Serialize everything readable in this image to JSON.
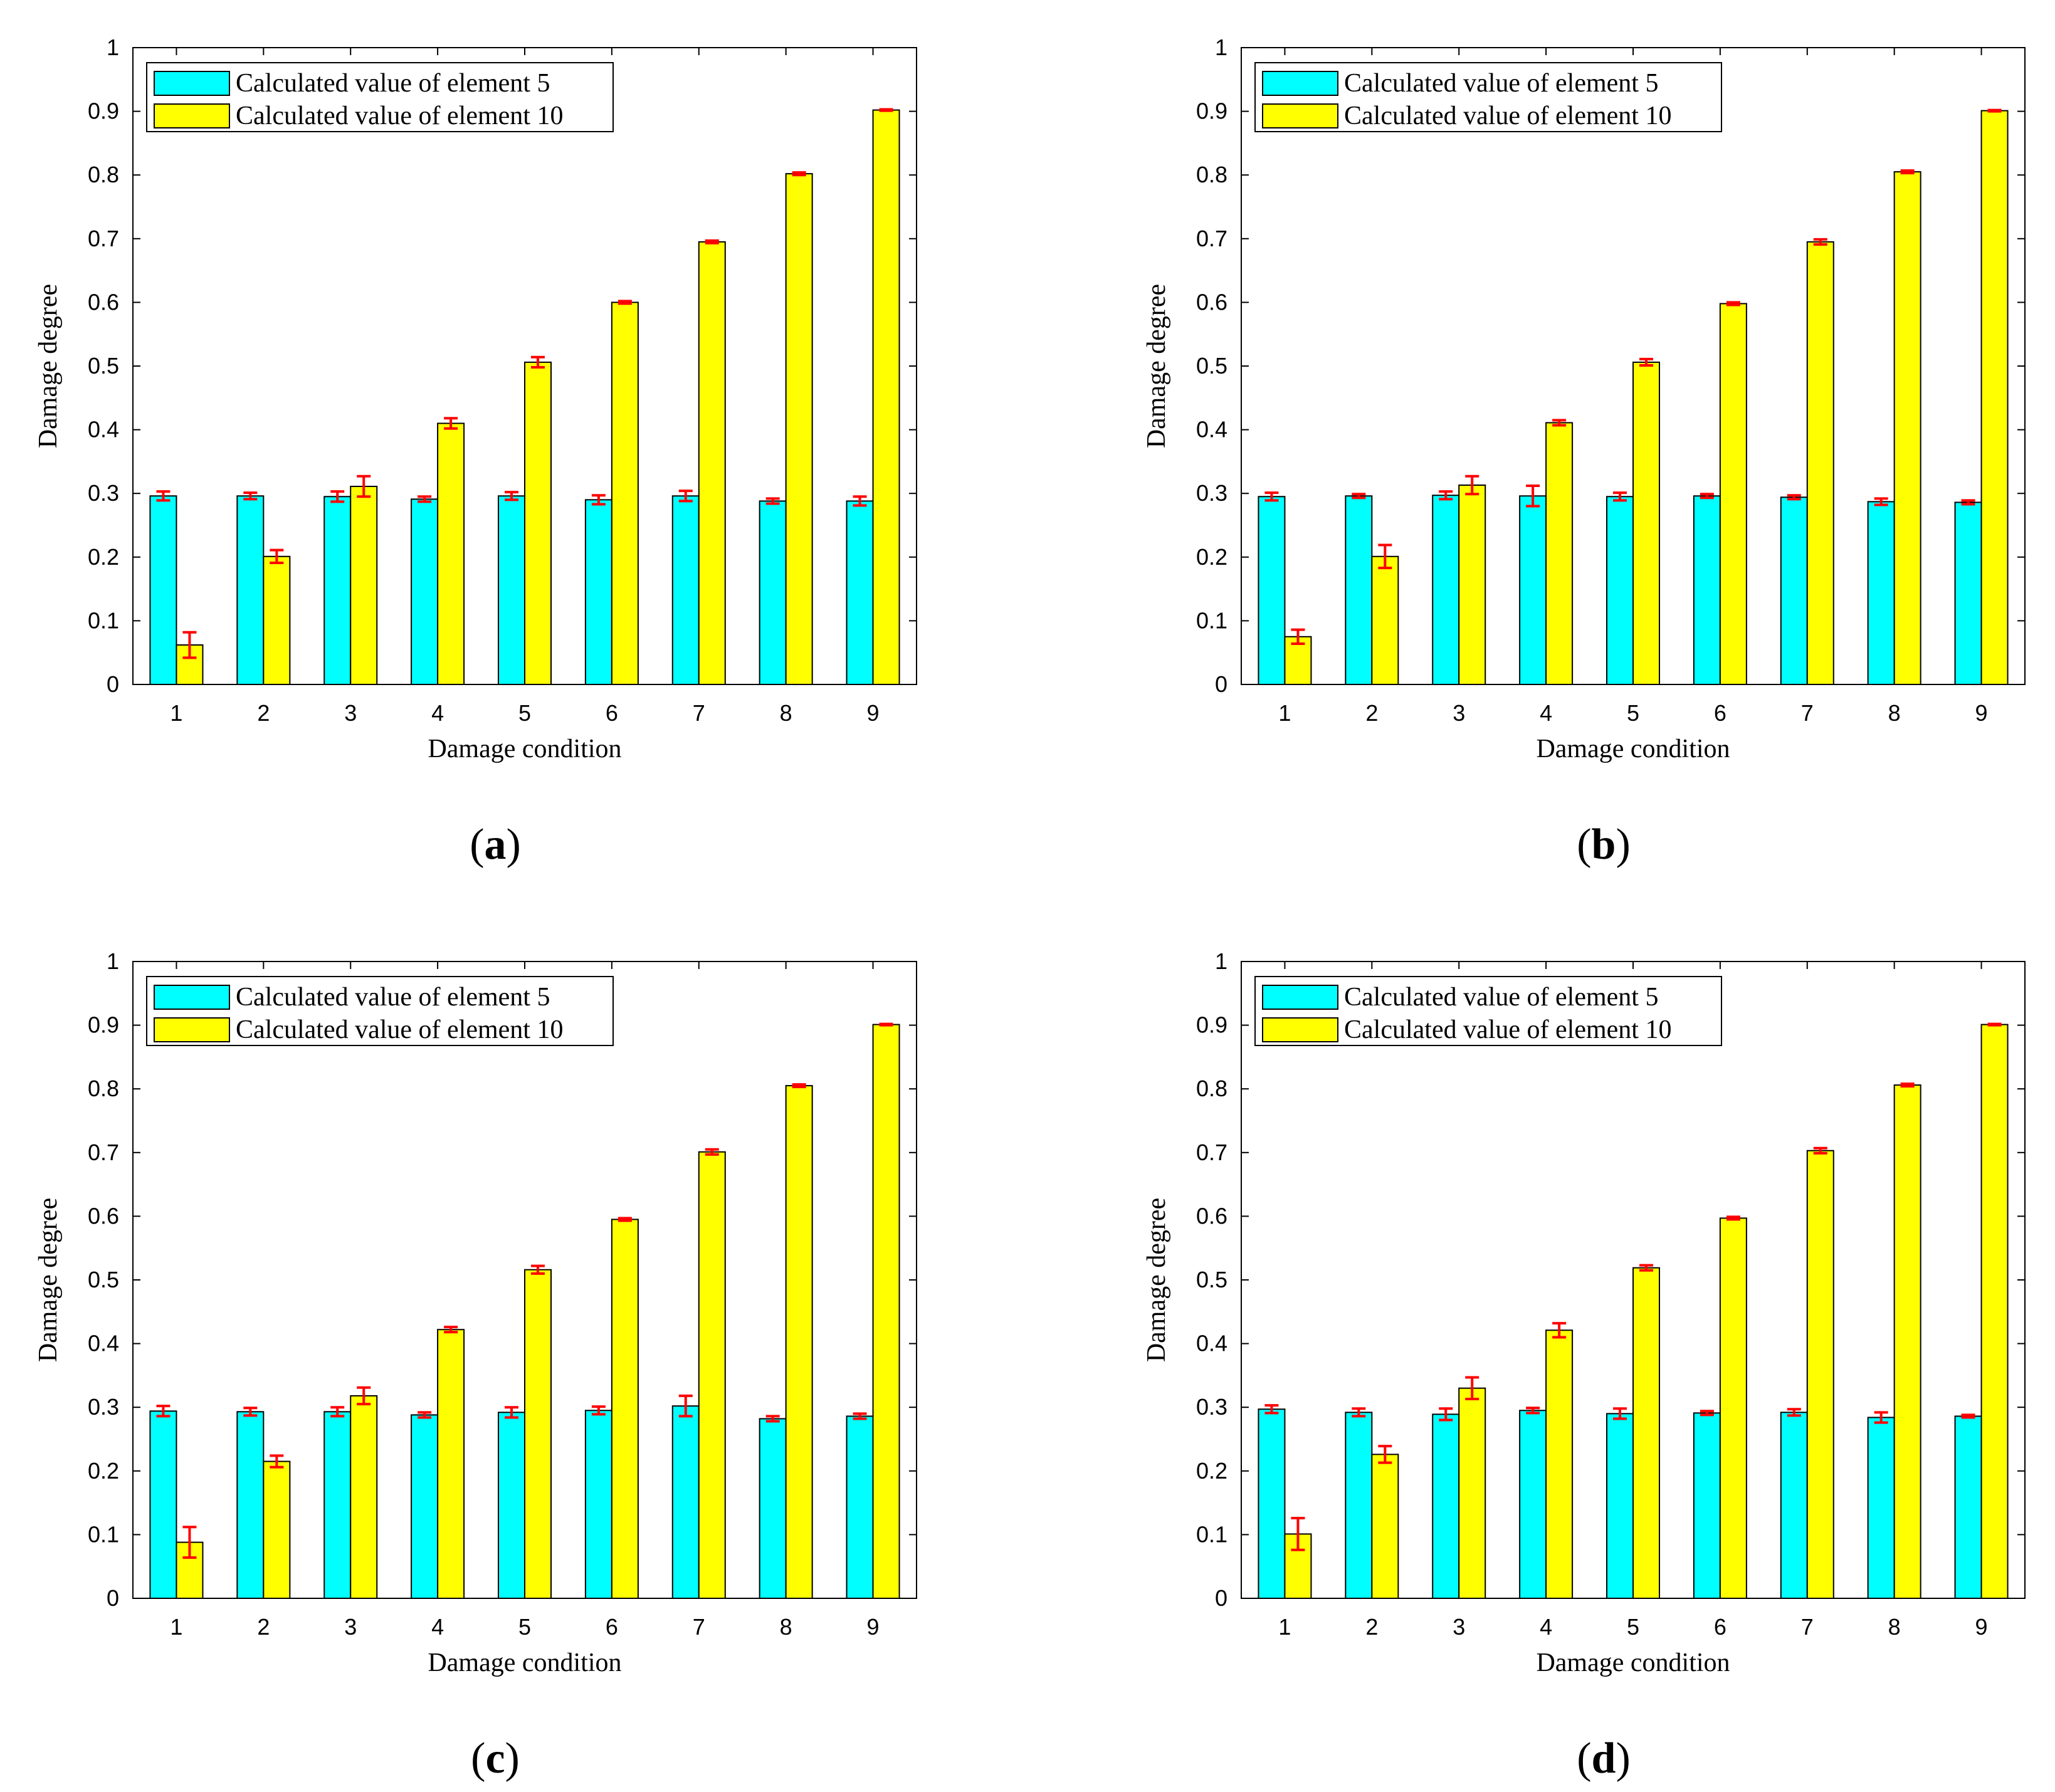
{
  "colors": {
    "series5": "#00FFFF",
    "series10": "#FFFF00",
    "errorbar": "#FF0000",
    "axis": "#000000"
  },
  "chart_data": [
    {
      "type": "bar",
      "panel": "a",
      "caption": [
        "(",
        "a",
        ")"
      ],
      "xlabel": "Damage condition",
      "ylabel": "Damage degree",
      "ylim": [
        0,
        1
      ],
      "yticks": [
        "0",
        "0.1",
        "0.2",
        "0.3",
        "0.4",
        "0.5",
        "0.6",
        "0.7",
        "0.8",
        "0.9",
        "1"
      ],
      "categories": [
        "1",
        "2",
        "3",
        "4",
        "5",
        "6",
        "7",
        "8",
        "9"
      ],
      "legend_position": "top-left",
      "series": [
        {
          "name": "Calculated value of element 5",
          "values": [
            0.296,
            0.296,
            0.295,
            0.291,
            0.296,
            0.29,
            0.296,
            0.288,
            0.288
          ],
          "errors": [
            0.007,
            0.005,
            0.008,
            0.004,
            0.006,
            0.007,
            0.008,
            0.004,
            0.007
          ]
        },
        {
          "name": "Calculated value of element 10",
          "values": [
            0.062,
            0.201,
            0.311,
            0.41,
            0.506,
            0.6,
            0.695,
            0.802,
            0.902
          ],
          "errors": [
            0.02,
            0.01,
            0.016,
            0.008,
            0.008,
            0.002,
            0.002,
            0.002,
            0.001
          ]
        }
      ]
    },
    {
      "type": "bar",
      "panel": "b",
      "caption": [
        "(",
        "b",
        ")"
      ],
      "xlabel": "Damage condition",
      "ylabel": "Damage degree",
      "ylim": [
        0,
        1
      ],
      "yticks": [
        "0",
        "0.1",
        "0.2",
        "0.3",
        "0.4",
        "0.5",
        "0.6",
        "0.7",
        "0.8",
        "0.9",
        "1"
      ],
      "categories": [
        "1",
        "2",
        "3",
        "4",
        "5",
        "6",
        "7",
        "8",
        "9"
      ],
      "legend_position": "top-left",
      "series": [
        {
          "name": "Calculated value of element 5",
          "values": [
            0.295,
            0.296,
            0.297,
            0.296,
            0.295,
            0.296,
            0.294,
            0.287,
            0.286
          ],
          "errors": [
            0.006,
            0.003,
            0.006,
            0.016,
            0.006,
            0.003,
            0.003,
            0.005,
            0.003
          ]
        },
        {
          "name": "Calculated value of element 10",
          "values": [
            0.075,
            0.201,
            0.313,
            0.411,
            0.506,
            0.598,
            0.695,
            0.805,
            0.901
          ],
          "errors": [
            0.011,
            0.018,
            0.014,
            0.004,
            0.005,
            0.002,
            0.004,
            0.002,
            0.001
          ]
        }
      ]
    },
    {
      "type": "bar",
      "panel": "c",
      "caption": [
        "(",
        "c",
        ")"
      ],
      "xlabel": "Damage condition",
      "ylabel": "Damage degree",
      "ylim": [
        0,
        1
      ],
      "yticks": [
        "0",
        "0.1",
        "0.2",
        "0.3",
        "0.4",
        "0.5",
        "0.6",
        "0.7",
        "0.8",
        "0.9",
        "1"
      ],
      "categories": [
        "1",
        "2",
        "3",
        "4",
        "5",
        "6",
        "7",
        "8",
        "9"
      ],
      "legend_position": "top-left",
      "series": [
        {
          "name": "Calculated value of element 5",
          "values": [
            0.294,
            0.293,
            0.293,
            0.288,
            0.292,
            0.295,
            0.302,
            0.282,
            0.286
          ],
          "errors": [
            0.008,
            0.006,
            0.007,
            0.004,
            0.008,
            0.006,
            0.016,
            0.004,
            0.004
          ]
        },
        {
          "name": "Calculated value of element 10",
          "values": [
            0.088,
            0.215,
            0.318,
            0.422,
            0.516,
            0.595,
            0.701,
            0.805,
            0.901
          ],
          "errors": [
            0.024,
            0.009,
            0.013,
            0.004,
            0.006,
            0.002,
            0.004,
            0.002,
            0.001
          ]
        }
      ]
    },
    {
      "type": "bar",
      "panel": "d",
      "caption": [
        "(",
        "d",
        ")"
      ],
      "xlabel": "Damage condition",
      "ylabel": "Damage degree",
      "ylim": [
        0,
        1
      ],
      "yticks": [
        "0",
        "0.1",
        "0.2",
        "0.3",
        "0.4",
        "0.5",
        "0.6",
        "0.7",
        "0.8",
        "0.9",
        "1"
      ],
      "categories": [
        "1",
        "2",
        "3",
        "4",
        "5",
        "6",
        "7",
        "8",
        "9"
      ],
      "legend_position": "top-left",
      "series": [
        {
          "name": "Calculated value of element 5",
          "values": [
            0.297,
            0.292,
            0.289,
            0.295,
            0.29,
            0.291,
            0.292,
            0.284,
            0.286
          ],
          "errors": [
            0.006,
            0.006,
            0.009,
            0.004,
            0.008,
            0.003,
            0.005,
            0.008,
            0.002
          ]
        },
        {
          "name": "Calculated value of element 10",
          "values": [
            0.101,
            0.226,
            0.33,
            0.421,
            0.519,
            0.597,
            0.703,
            0.806,
            0.901
          ],
          "errors": [
            0.025,
            0.013,
            0.017,
            0.011,
            0.004,
            0.002,
            0.004,
            0.002,
            0.001
          ]
        }
      ]
    }
  ]
}
